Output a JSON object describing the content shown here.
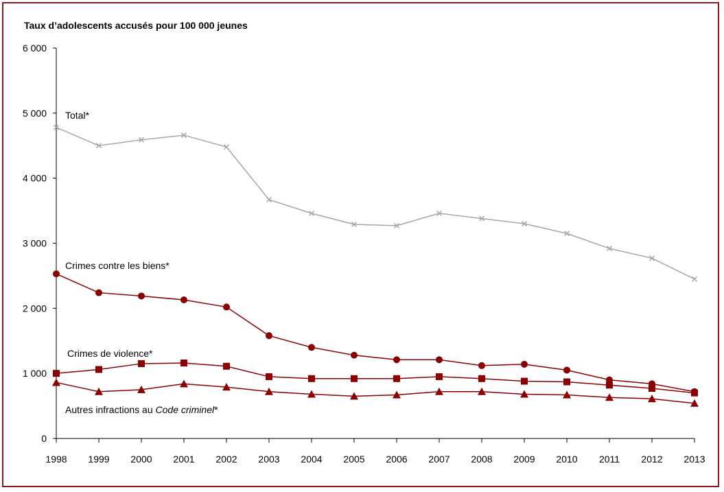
{
  "chart_data": {
    "type": "line",
    "title": "Taux d’adolescents accusés pour 100 000 jeunes",
    "xlabel": "",
    "ylabel": "",
    "ylim": [
      0,
      6000
    ],
    "y_ticks": [
      "0",
      "1 000",
      "2 000",
      "3 000",
      "4 000",
      "5 000",
      "6 000"
    ],
    "x": [
      "1998",
      "1999",
      "2000",
      "2001",
      "2002",
      "2003",
      "2004",
      "2005",
      "2006",
      "2007",
      "2008",
      "2009",
      "2010",
      "2011",
      "2012",
      "2013"
    ],
    "grid": false,
    "series": [
      {
        "name": "Total*",
        "color": "#a6a6a6",
        "marker": "x",
        "values": [
          4780,
          4500,
          4590,
          4660,
          4480,
          3670,
          3460,
          3290,
          3270,
          3460,
          3380,
          3300,
          3150,
          2920,
          2770,
          2450
        ]
      },
      {
        "name": "Crimes contre les biens*",
        "color": "#8b0000",
        "marker": "circle",
        "values": [
          2530,
          2240,
          2190,
          2130,
          2020,
          1580,
          1400,
          1280,
          1210,
          1210,
          1120,
          1140,
          1050,
          900,
          840,
          720
        ]
      },
      {
        "name": "Crimes de violence*",
        "color": "#8b0000",
        "marker": "square",
        "values": [
          1000,
          1060,
          1150,
          1160,
          1110,
          950,
          920,
          920,
          920,
          950,
          920,
          880,
          870,
          820,
          770,
          700
        ]
      },
      {
        "name_parts": [
          "Autres infractions au ",
          "Code criminel",
          "*"
        ],
        "color": "#8b0000",
        "marker": "triangle",
        "values": [
          860,
          720,
          750,
          840,
          790,
          720,
          680,
          650,
          670,
          720,
          720,
          680,
          670,
          630,
          610,
          540
        ]
      }
    ]
  }
}
